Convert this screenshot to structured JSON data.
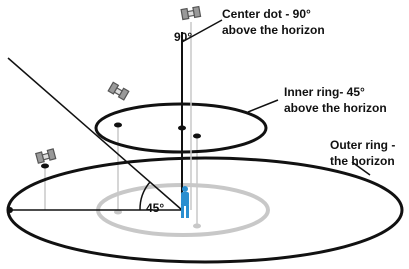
{
  "labels": {
    "center": {
      "lines": [
        "Center dot - 90°",
        "above the horizon"
      ]
    },
    "inner": {
      "lines": [
        "Inner ring- 45°",
        "above the horizon"
      ]
    },
    "outer": {
      "lines": [
        "Outer ring -",
        "the horizon"
      ]
    },
    "zenith_angle": "90°",
    "horizon_angle": "45°"
  }
}
